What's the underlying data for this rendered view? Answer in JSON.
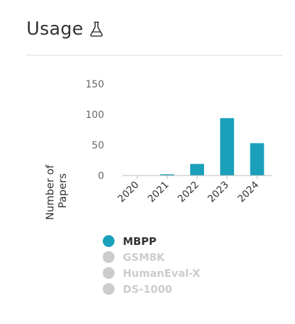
{
  "header": {
    "title": "Usage"
  },
  "colors": {
    "active": "#1aa0bb",
    "inactive": "#cccccc",
    "active_text": "#333333",
    "inactive_text": "#cccccc",
    "axis": "#bbbbbb",
    "tick_text": "#666666"
  },
  "chart_data": {
    "type": "bar",
    "ylabel": "Number of Papers",
    "categories": [
      "2020",
      "2021",
      "2022",
      "2023",
      "2024"
    ],
    "series": [
      {
        "name": "MBPP",
        "values": [
          0,
          2,
          19,
          94,
          53
        ]
      }
    ],
    "ylim": [
      0,
      150
    ],
    "yticks": [
      0,
      50,
      100,
      150
    ],
    "grid": false,
    "legend_placement": "bottom"
  },
  "legend": {
    "items": [
      {
        "label": "MBPP",
        "active": true
      },
      {
        "label": "GSM8K",
        "active": false
      },
      {
        "label": "HumanEval-X",
        "active": false
      },
      {
        "label": "DS-1000",
        "active": false
      }
    ]
  }
}
